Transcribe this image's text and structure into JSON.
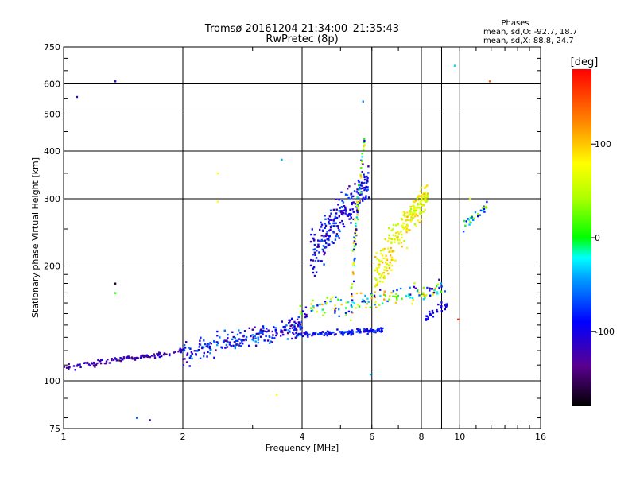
{
  "chart_data": {
    "type": "scatter",
    "title": "Tromsø 20161204 21:34:00–21:35:43",
    "subtitle": "RwPretec (8p)",
    "xlabel": "Frequency [MHz]",
    "ylabel": "Stationary phase Virtual Height [km]",
    "x_scale": "log",
    "y_scale": "log",
    "xlim": [
      1,
      16
    ],
    "ylim": [
      75,
      750
    ],
    "x_ticks": [
      1,
      2,
      4,
      6,
      8,
      10,
      16
    ],
    "x_minor": [
      9
    ],
    "y_ticks": [
      75,
      100,
      200,
      300,
      400,
      500,
      600,
      750
    ],
    "grid": true,
    "colorbar": {
      "label": "[deg]",
      "range": [
        -180,
        180
      ],
      "ticks": [
        100,
        0,
        -100
      ],
      "colormap": "rainbow (black-purple-blue-cyan-green-yellow-orange-red)"
    },
    "stats": {
      "heading": "Phases",
      "line_o": "mean, sd,O: -92.7, 18.7",
      "line_x": "mean, sd,X: 88.8, 24.7"
    },
    "outliers": [
      {
        "x": 1.35,
        "y": 610,
        "phase": -110
      },
      {
        "x": 1.08,
        "y": 555,
        "phase": -120
      },
      {
        "x": 9.7,
        "y": 670,
        "phase": -30
      },
      {
        "x": 11.9,
        "y": 610,
        "phase": 140
      },
      {
        "x": 5.7,
        "y": 540,
        "phase": -50
      },
      {
        "x": 2.45,
        "y": 350,
        "phase": 80
      },
      {
        "x": 2.45,
        "y": 295,
        "phase": 80
      },
      {
        "x": 3.55,
        "y": 380,
        "phase": -40
      },
      {
        "x": 3.45,
        "y": 92,
        "phase": 80
      },
      {
        "x": 1.35,
        "y": 180,
        "phase": -170
      },
      {
        "x": 1.35,
        "y": 170,
        "phase": 10
      },
      {
        "x": 1.53,
        "y": 80,
        "phase": -60
      },
      {
        "x": 1.65,
        "y": 79,
        "phase": -110
      },
      {
        "x": 5.95,
        "y": 104,
        "phase": -40
      },
      {
        "x": 9.9,
        "y": 145,
        "phase": 160
      },
      {
        "x": 10.6,
        "y": 300,
        "phase": 60
      }
    ],
    "clusters": [
      {
        "name": "low F-trace",
        "x_from": 1.0,
        "x_to": 2.0,
        "y_from": 108,
        "y_to": 120,
        "y_spread": 3,
        "n": 110,
        "phase": [
          -150,
          -90
        ]
      },
      {
        "name": "rising F-trace",
        "x_from": 2.0,
        "x_to": 4.0,
        "y_from": 118,
        "y_to": 140,
        "y_spread": 12,
        "n": 230,
        "phase": [
          -140,
          -40
        ]
      },
      {
        "name": "F-trace plateau",
        "x_from": 3.9,
        "x_to": 6.4,
        "y_from": 132,
        "y_to": 136,
        "y_spread": 3,
        "n": 140,
        "phase": [
          -120,
          -60
        ]
      },
      {
        "name": "mid-height band",
        "x_from": 3.9,
        "x_to": 9.2,
        "y_from": 150,
        "y_to": 175,
        "y_spread": 14,
        "n": 150,
        "phase": [
          -130,
          120
        ]
      },
      {
        "name": "upper spread O",
        "x_from": 4.2,
        "x_to": 5.9,
        "y_from": 210,
        "y_to": 330,
        "y_spread": 45,
        "n": 230,
        "phase": [
          -130,
          -60
        ]
      },
      {
        "name": "upper spread X",
        "x_from": 6.1,
        "x_to": 8.3,
        "y_from": 185,
        "y_to": 310,
        "y_spread": 45,
        "n": 230,
        "phase": [
          40,
          110
        ]
      },
      {
        "name": "tall column",
        "x_from": 5.3,
        "x_to": 5.75,
        "y_from": 150,
        "y_to": 420,
        "y_spread": 40,
        "n": 80,
        "phase": [
          -120,
          120
        ]
      },
      {
        "name": "high cluster",
        "x_from": 10.2,
        "x_to": 11.8,
        "y_from": 255,
        "y_to": 290,
        "y_spread": 12,
        "n": 30,
        "phase": [
          -110,
          60
        ]
      },
      {
        "name": "echo 8-9 MHz",
        "x_from": 8.2,
        "x_to": 9.3,
        "y_from": 145,
        "y_to": 160,
        "y_spread": 6,
        "n": 30,
        "phase": [
          -110,
          -80
        ]
      }
    ]
  }
}
